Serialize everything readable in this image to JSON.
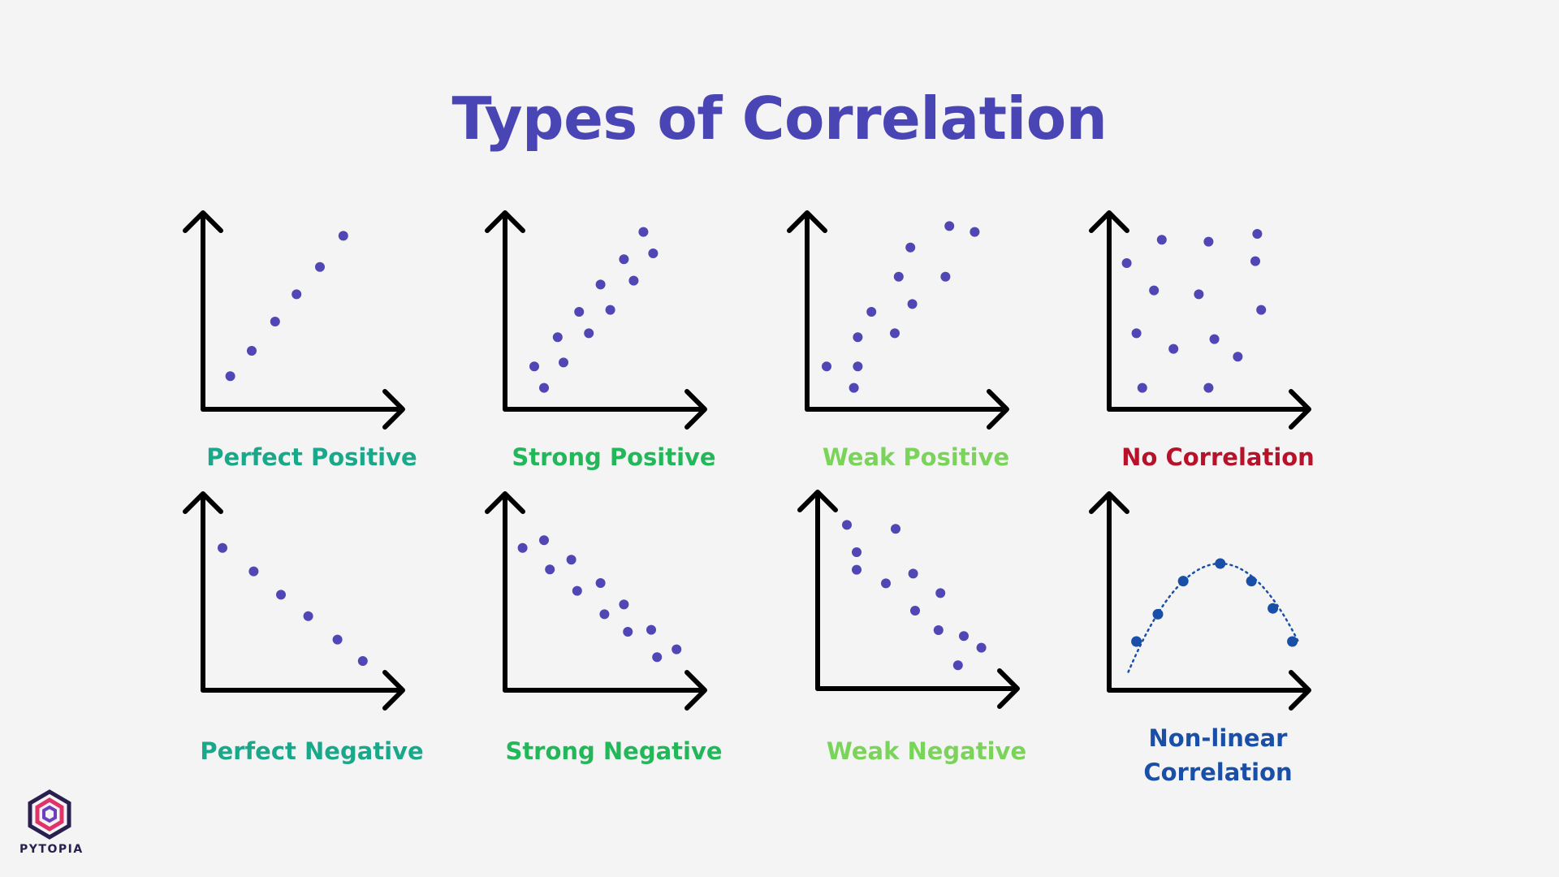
{
  "title": "Types of Correlation",
  "colors": {
    "background": "#f4f4f4",
    "title": "#4a45b5",
    "dot": "#5046b4",
    "axis": "#000000",
    "nonlinear": "#1a4fa8"
  },
  "logo": {
    "text": "PYTOPIA",
    "icon": "pytopia-hexagon-logo"
  },
  "chart_data": [
    {
      "type": "scatter",
      "label": "Perfect Positive",
      "label_color": "#1aa88a",
      "points": [
        [
          0.14,
          0.17
        ],
        [
          0.25,
          0.3
        ],
        [
          0.37,
          0.45
        ],
        [
          0.48,
          0.59
        ],
        [
          0.6,
          0.73
        ],
        [
          0.72,
          0.89
        ]
      ]
    },
    {
      "type": "scatter",
      "label": "Strong Positive",
      "label_color": "#22b85a",
      "points": [
        [
          0.15,
          0.22
        ],
        [
          0.2,
          0.11
        ],
        [
          0.27,
          0.37
        ],
        [
          0.3,
          0.24
        ],
        [
          0.38,
          0.5
        ],
        [
          0.43,
          0.39
        ],
        [
          0.49,
          0.64
        ],
        [
          0.54,
          0.51
        ],
        [
          0.61,
          0.77
        ],
        [
          0.66,
          0.66
        ],
        [
          0.71,
          0.91
        ],
        [
          0.76,
          0.8
        ]
      ]
    },
    {
      "type": "scatter",
      "label": "Weak Positive",
      "label_color": "#7bd45a",
      "points": [
        [
          0.1,
          0.22
        ],
        [
          0.24,
          0.11
        ],
        [
          0.26,
          0.22
        ],
        [
          0.26,
          0.37
        ],
        [
          0.33,
          0.5
        ],
        [
          0.45,
          0.39
        ],
        [
          0.47,
          0.68
        ],
        [
          0.53,
          0.83
        ],
        [
          0.54,
          0.54
        ],
        [
          0.71,
          0.68
        ],
        [
          0.73,
          0.94
        ],
        [
          0.86,
          0.91
        ]
      ]
    },
    {
      "type": "scatter",
      "label": "No Correlation",
      "label_color": "#b8112a",
      "points": [
        [
          0.09,
          0.75
        ],
        [
          0.14,
          0.39
        ],
        [
          0.17,
          0.11
        ],
        [
          0.23,
          0.61
        ],
        [
          0.27,
          0.87
        ],
        [
          0.33,
          0.31
        ],
        [
          0.46,
          0.59
        ],
        [
          0.51,
          0.86
        ],
        [
          0.51,
          0.11
        ],
        [
          0.54,
          0.36
        ],
        [
          0.66,
          0.27
        ],
        [
          0.75,
          0.76
        ],
        [
          0.76,
          0.9
        ],
        [
          0.78,
          0.51
        ]
      ]
    },
    {
      "type": "scatter",
      "label": "Perfect Negative",
      "label_color": "#1aa88a",
      "points": [
        [
          0.1,
          0.73
        ],
        [
          0.26,
          0.61
        ],
        [
          0.4,
          0.49
        ],
        [
          0.54,
          0.38
        ],
        [
          0.69,
          0.26
        ],
        [
          0.82,
          0.15
        ]
      ]
    },
    {
      "type": "scatter",
      "label": "Strong Negative",
      "label_color": "#22b85a",
      "points": [
        [
          0.09,
          0.73
        ],
        [
          0.2,
          0.77
        ],
        [
          0.23,
          0.62
        ],
        [
          0.34,
          0.67
        ],
        [
          0.37,
          0.51
        ],
        [
          0.49,
          0.55
        ],
        [
          0.51,
          0.39
        ],
        [
          0.61,
          0.44
        ],
        [
          0.63,
          0.3
        ],
        [
          0.75,
          0.31
        ],
        [
          0.78,
          0.17
        ],
        [
          0.88,
          0.21
        ]
      ]
    },
    {
      "type": "scatter",
      "label": "Weak Negative",
      "label_color": "#7bd45a",
      "points": [
        [
          0.15,
          0.84
        ],
        [
          0.2,
          0.7
        ],
        [
          0.2,
          0.61
        ],
        [
          0.35,
          0.54
        ],
        [
          0.4,
          0.82
        ],
        [
          0.49,
          0.59
        ],
        [
          0.5,
          0.4
        ],
        [
          0.62,
          0.3
        ],
        [
          0.63,
          0.49
        ],
        [
          0.75,
          0.27
        ],
        [
          0.72,
          0.12
        ],
        [
          0.84,
          0.21
        ]
      ]
    },
    {
      "type": "line",
      "label": "Non-linear\nCorrelation",
      "label_color": "#1a4fa8",
      "points": [
        [
          0.14,
          0.25
        ],
        [
          0.25,
          0.39
        ],
        [
          0.38,
          0.56
        ],
        [
          0.57,
          0.65
        ],
        [
          0.73,
          0.56
        ],
        [
          0.84,
          0.42
        ],
        [
          0.94,
          0.25
        ]
      ],
      "curve": "dotted parabola"
    }
  ]
}
